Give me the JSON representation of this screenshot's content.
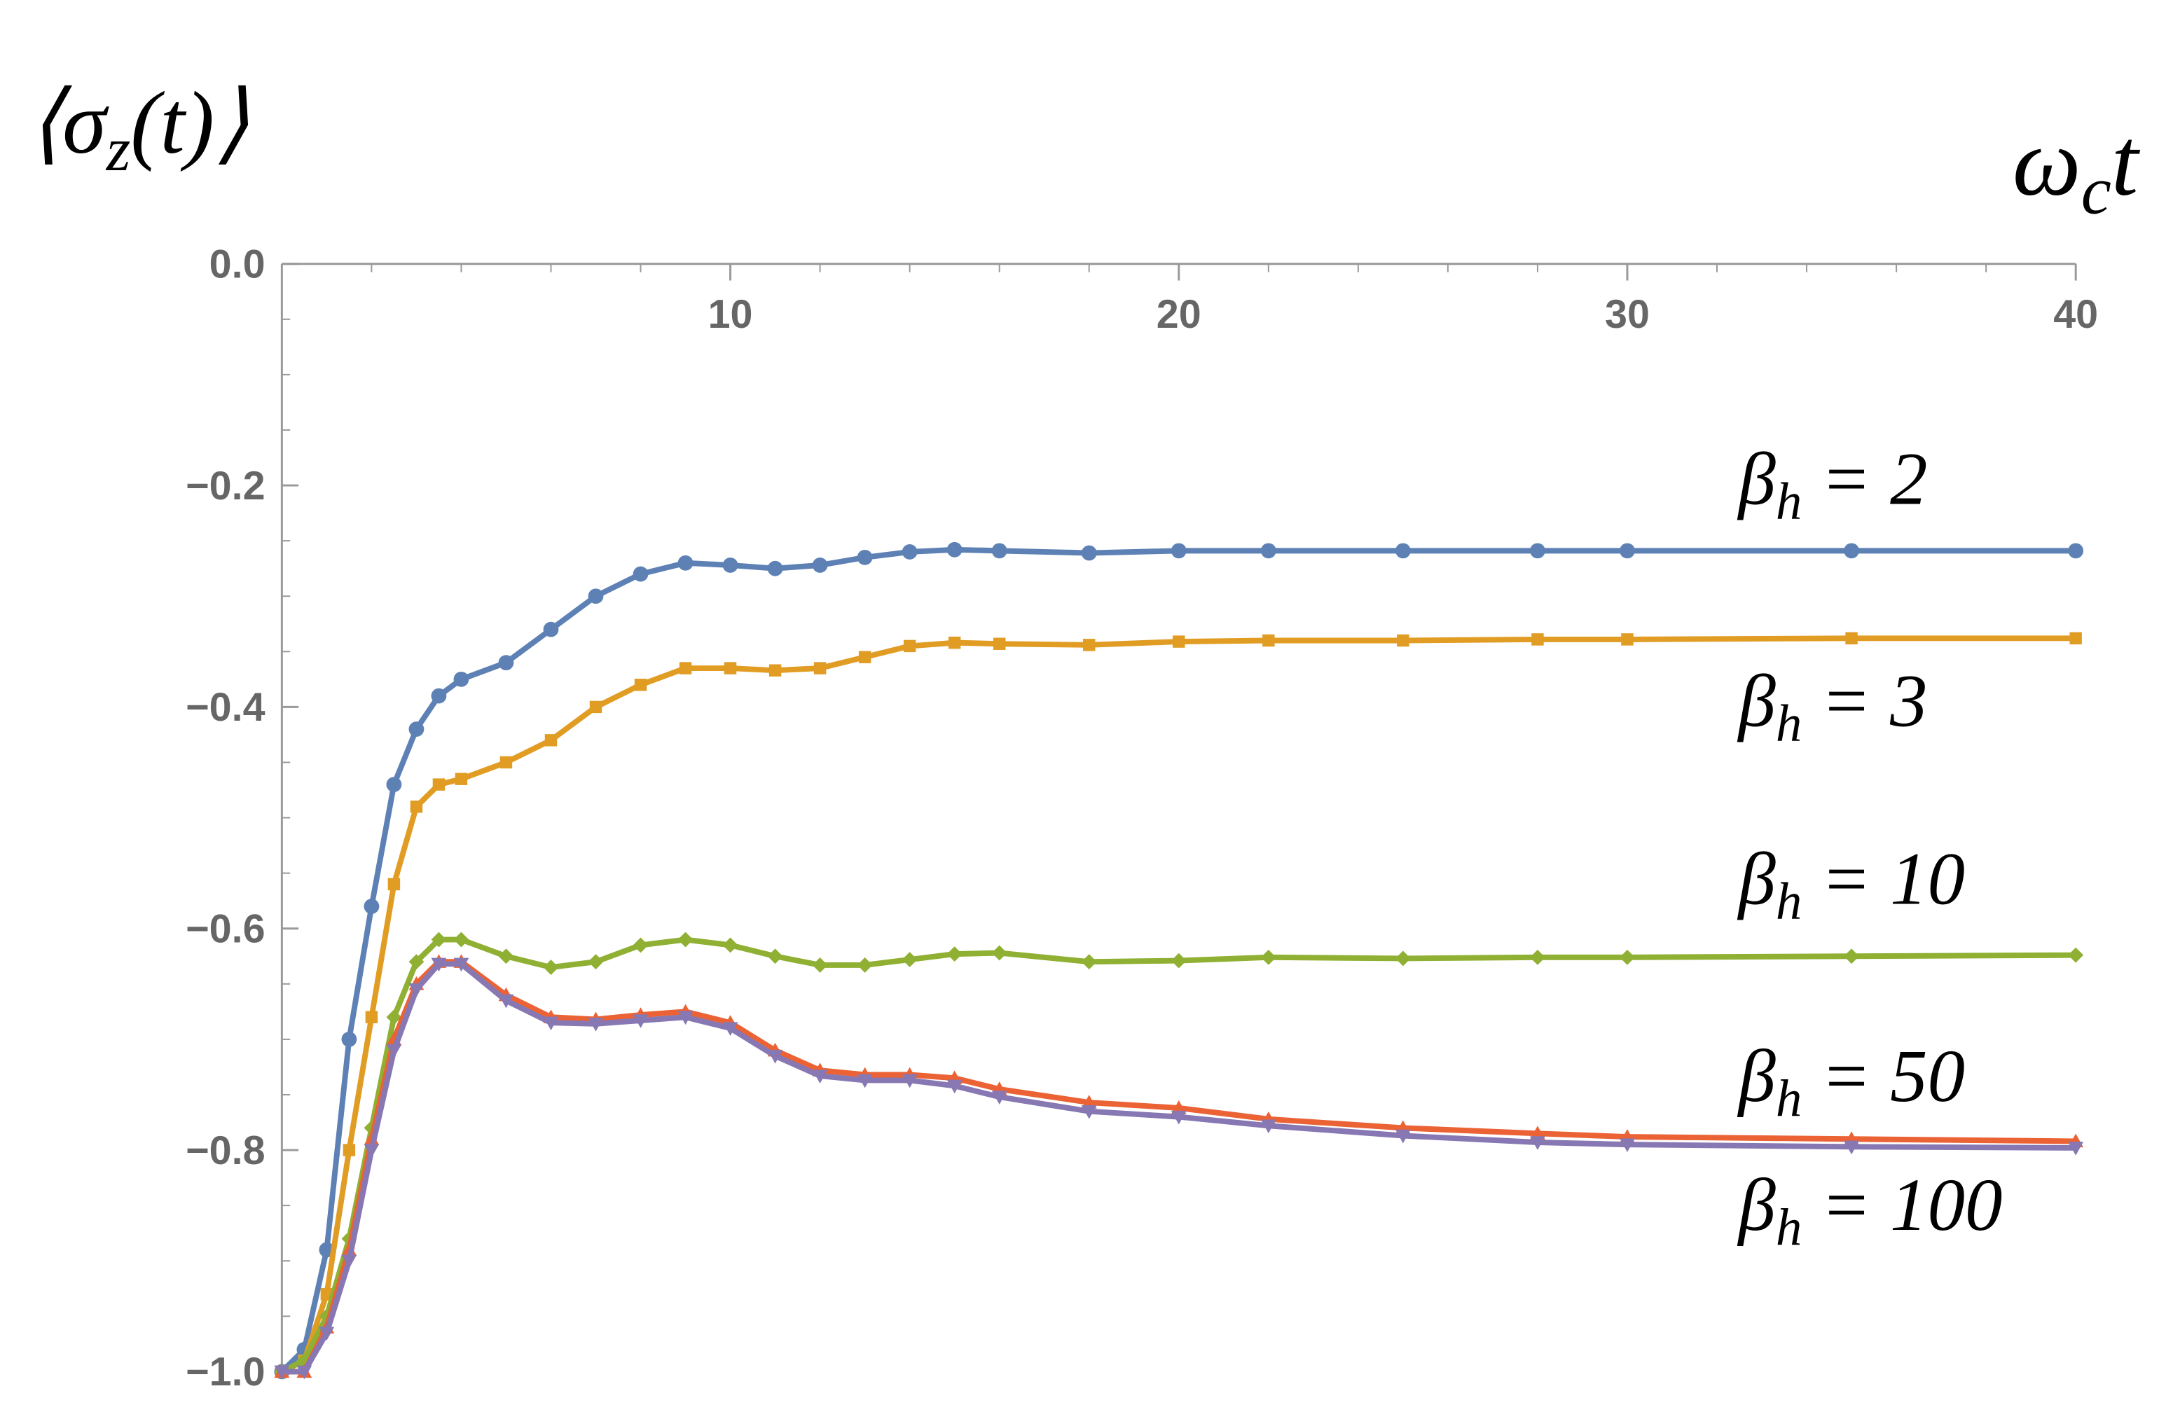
{
  "chart_data": {
    "type": "line",
    "y_label": "⟨σz(t)⟩",
    "x_label": "ωct",
    "x": [
      0,
      0.5,
      1,
      1.5,
      2,
      2.5,
      3,
      3.5,
      4,
      5,
      6,
      7,
      8,
      9,
      10,
      11,
      12,
      13,
      14,
      15,
      16,
      18,
      20,
      22,
      25,
      28,
      30,
      35,
      40
    ],
    "xlim": [
      0,
      40
    ],
    "xticks": [
      10,
      20,
      30,
      40
    ],
    "ylim": [
      -1,
      0
    ],
    "yticks": [
      {
        "value": 0,
        "label": "0.0"
      },
      {
        "value": -0.2,
        "label": "−0.2"
      },
      {
        "value": -0.4,
        "label": "−0.4"
      },
      {
        "value": -0.6,
        "label": "−0.6"
      },
      {
        "value": -0.8,
        "label": "−0.8"
      },
      {
        "value": -1,
        "label": "−1.0"
      }
    ],
    "series": [
      {
        "name": "βh = 2",
        "color": "#5e81b5",
        "marker": "circle",
        "values": [
          -1.0,
          -0.98,
          -0.89,
          -0.7,
          -0.58,
          -0.47,
          -0.42,
          -0.39,
          -0.375,
          -0.36,
          -0.33,
          -0.3,
          -0.28,
          -0.27,
          -0.272,
          -0.275,
          -0.272,
          -0.265,
          -0.26,
          -0.258,
          -0.259,
          -0.261,
          -0.259,
          -0.259,
          -0.259,
          -0.259,
          -0.259,
          -0.259,
          -0.259
        ]
      },
      {
        "name": "βh = 3",
        "color": "#e19c24",
        "marker": "square",
        "values": [
          -1.0,
          -0.99,
          -0.93,
          -0.8,
          -0.68,
          -0.56,
          -0.49,
          -0.47,
          -0.465,
          -0.45,
          -0.43,
          -0.4,
          -0.38,
          -0.365,
          -0.365,
          -0.367,
          -0.365,
          -0.355,
          -0.345,
          -0.342,
          -0.343,
          -0.344,
          -0.341,
          -0.34,
          -0.34,
          -0.339,
          -0.339,
          -0.338,
          -0.338
        ]
      },
      {
        "name": "βh = 10",
        "color": "#8fb032",
        "marker": "diamond",
        "values": [
          -1.0,
          -0.99,
          -0.95,
          -0.88,
          -0.78,
          -0.68,
          -0.63,
          -0.61,
          -0.61,
          -0.625,
          -0.635,
          -0.63,
          -0.615,
          -0.61,
          -0.615,
          -0.625,
          -0.633,
          -0.633,
          -0.628,
          -0.623,
          -0.622,
          -0.63,
          -0.629,
          -0.626,
          -0.627,
          -0.626,
          -0.626,
          -0.625,
          -0.624
        ]
      },
      {
        "name": "βh = 50",
        "color": "#eb6235",
        "marker": "triangle-up",
        "values": [
          -1.0,
          -1.0,
          -0.96,
          -0.89,
          -0.79,
          -0.7,
          -0.65,
          -0.63,
          -0.63,
          -0.66,
          -0.68,
          -0.682,
          -0.678,
          -0.675,
          -0.685,
          -0.71,
          -0.728,
          -0.732,
          -0.732,
          -0.735,
          -0.745,
          -0.757,
          -0.762,
          -0.772,
          -0.78,
          -0.785,
          -0.788,
          -0.79,
          -0.792
        ]
      },
      {
        "name": "βh = 100",
        "color": "#8778b3",
        "marker": "triangle-down",
        "values": [
          -1.0,
          -1.0,
          -0.965,
          -0.9,
          -0.8,
          -0.71,
          -0.655,
          -0.632,
          -0.632,
          -0.665,
          -0.685,
          -0.686,
          -0.683,
          -0.68,
          -0.69,
          -0.715,
          -0.733,
          -0.737,
          -0.737,
          -0.742,
          -0.752,
          -0.765,
          -0.77,
          -0.778,
          -0.787,
          -0.793,
          -0.795,
          -0.797,
          -0.798
        ]
      }
    ]
  }
}
